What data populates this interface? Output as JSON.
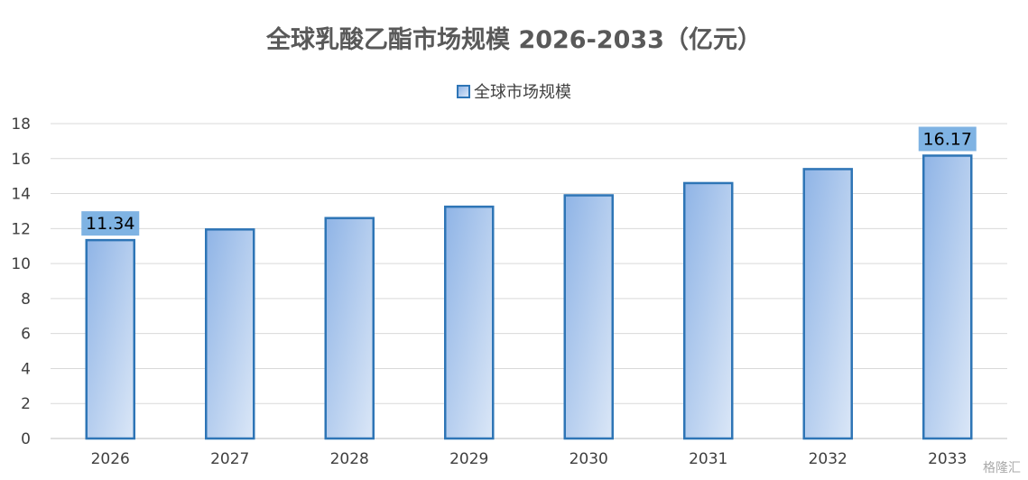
{
  "chart_data": {
    "type": "bar",
    "title": "全球乳酸乙酯市场规模 2026-2033（亿元）",
    "legend": "全球市场规模",
    "legend_position": "top",
    "categories": [
      "2026",
      "2027",
      "2028",
      "2029",
      "2030",
      "2031",
      "2032",
      "2033"
    ],
    "series": [
      {
        "name": "全球市场规模",
        "values": [
          11.34,
          11.95,
          12.6,
          13.25,
          13.9,
          14.6,
          15.4,
          16.17
        ]
      }
    ],
    "data_labels": [
      {
        "index": 0,
        "text": "11.34"
      },
      {
        "index": 7,
        "text": "16.17"
      }
    ],
    "ylim": [
      0,
      18
    ],
    "yticks": [
      0,
      2,
      4,
      6,
      8,
      10,
      12,
      14,
      16,
      18
    ],
    "grid": true,
    "colors": {
      "bar_border": "#2e75b6",
      "bar_fill_dark": "#8fb4e6",
      "bar_fill_light": "#dbe7f7",
      "label_bg": "#7fb3e3",
      "grid": "#d9d9d9",
      "title": "#595959"
    }
  },
  "watermark": "格隆汇"
}
